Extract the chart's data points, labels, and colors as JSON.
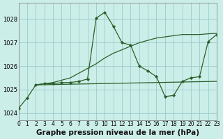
{
  "title": "Graphe pression niveau de la mer (hPa)",
  "background_color": "#cceee8",
  "grid_color": "#99cccc",
  "line_color": "#2a5f2a",
  "xlim": [
    0,
    23
  ],
  "ylim": [
    1023.7,
    1028.7
  ],
  "yticks": [
    1024,
    1025,
    1026,
    1027,
    1028
  ],
  "xticks": [
    0,
    1,
    2,
    3,
    4,
    5,
    6,
    7,
    8,
    9,
    10,
    11,
    12,
    13,
    14,
    15,
    16,
    17,
    18,
    19,
    20,
    21,
    22,
    23
  ],
  "series1_x": [
    0,
    1,
    2,
    3,
    4,
    5,
    6,
    7,
    8,
    9,
    10,
    11,
    12,
    13,
    14,
    15,
    16,
    17,
    18,
    19,
    20,
    21,
    22,
    23
  ],
  "series1_y": [
    1024.2,
    1024.65,
    1025.2,
    1025.25,
    1025.25,
    1025.3,
    1025.3,
    1025.35,
    1025.45,
    1028.05,
    1028.3,
    1027.7,
    1027.0,
    1026.9,
    1026.0,
    1025.8,
    1025.55,
    1024.7,
    1024.75,
    1025.35,
    1025.5,
    1025.55,
    1027.05,
    1027.35
  ],
  "series2_x": [
    2,
    3,
    4,
    5,
    6,
    7,
    8,
    9,
    10,
    11,
    12,
    13,
    14,
    15,
    16,
    17,
    18,
    19,
    20,
    21,
    22,
    23
  ],
  "series2_y": [
    1025.2,
    1025.25,
    1025.3,
    1025.4,
    1025.5,
    1025.7,
    1025.9,
    1026.1,
    1026.35,
    1026.55,
    1026.7,
    1026.85,
    1027.0,
    1027.1,
    1027.2,
    1027.25,
    1027.3,
    1027.35,
    1027.35,
    1027.35,
    1027.38,
    1027.4
  ],
  "series3_x": [
    2,
    23
  ],
  "series3_y": [
    1025.2,
    1025.35
  ],
  "tick_fontsize": 5.5,
  "title_fontsize": 7.5
}
